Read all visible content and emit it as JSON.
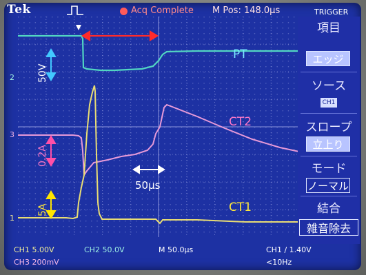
{
  "brand": "Tek",
  "acquisition_status": "Acq Complete",
  "m_pos": "M Pos: 148.0µs",
  "side_menu": {
    "title": "TRIGGER",
    "item_label": "項目",
    "item_value": "エッジ",
    "source_label": "ソース",
    "source_value": "CH1",
    "slope_label": "スロープ",
    "slope_value": "立上り",
    "mode_label": "モード",
    "mode_value": "ノーマル",
    "coupling_label": "結合",
    "coupling_value": "雑音除去"
  },
  "status_bar": {
    "ch1": "CH1  5.00V",
    "ch2": "CH2  50.0V",
    "time": "M 50.0µs",
    "trigger": "CH1 ∕ 1.40V",
    "ch3": "CH3  200mV",
    "freq": "<10Hz"
  },
  "annotations": {
    "pt_label": "PT",
    "ct2_label": "CT2",
    "ct1_label": "CT1",
    "pt_scale": "50V",
    "ct2_scale": "0.2A",
    "ct1_scale": "5A",
    "time_scale": "50µs"
  },
  "channel_markers": {
    "ch2": "2",
    "ch3": "3",
    "ch1": "1"
  },
  "colors": {
    "screen": "#1d31a3",
    "pt_trace": "#52d6c2",
    "ct2_trace": "#e79ad8",
    "ct1_trace": "#e9dd74",
    "pt_label": "#79e6ff",
    "ct2_label": "#ff79c8",
    "ct1_label": "#ffe83a",
    "duration_arrow": "#ff2b2b"
  }
}
